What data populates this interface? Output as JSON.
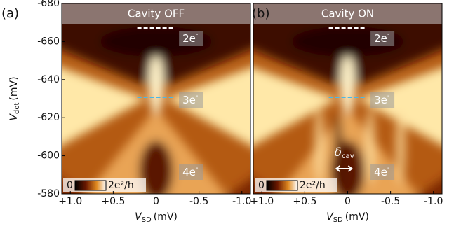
{
  "chart_data": [
    {
      "type": "heatmap",
      "panel_label": "(a)",
      "title": "Cavity OFF",
      "xlim": [
        1.1,
        -1.1
      ],
      "xticks": [
        {
          "value": 1,
          "label": "+1.0"
        },
        {
          "value": 0.5,
          "label": "+0.5"
        },
        0,
        -0.5,
        {
          "value": -1,
          "label": "-1.0"
        }
      ],
      "ylim": [
        -680,
        -580
      ],
      "yticks": [
        -680,
        -660,
        -640,
        -620,
        -600,
        -580
      ],
      "x_label": {
        "symbol": "V",
        "sub": "SD",
        "unit": "(mV)"
      },
      "y_label": {
        "symbol": "V",
        "sub": "dot",
        "unit": "(mV)"
      },
      "annotations": [
        {
          "text": "2e",
          "sup": "-"
        },
        {
          "text": "3e",
          "sup": "-"
        },
        {
          "text": "4e",
          "sup": "-"
        }
      ],
      "colorbar": {
        "min_label": "0",
        "max_label": "2e²/h"
      }
    },
    {
      "type": "heatmap",
      "panel_label": "(b)",
      "title": "Cavity ON",
      "xlim": [
        1.1,
        -1.1
      ],
      "xticks": [
        {
          "value": 1,
          "label": "+1.0"
        },
        {
          "value": 0.5,
          "label": "+0.5"
        },
        0,
        -0.5,
        {
          "value": -1,
          "label": "-1.0"
        }
      ],
      "ylim": [
        -680,
        -580
      ],
      "x_label": {
        "symbol": "V",
        "sub": "SD",
        "unit": "(mV)"
      },
      "annotations": [
        {
          "text": "2e",
          "sup": "-"
        },
        {
          "text": "3e",
          "sup": "-"
        },
        {
          "text": "4e",
          "sup": "-"
        }
      ],
      "colorbar": {
        "min_label": "0",
        "max_label": "2e²/h"
      },
      "delta_label": {
        "symbol": "δ",
        "sub": "cav"
      }
    }
  ]
}
